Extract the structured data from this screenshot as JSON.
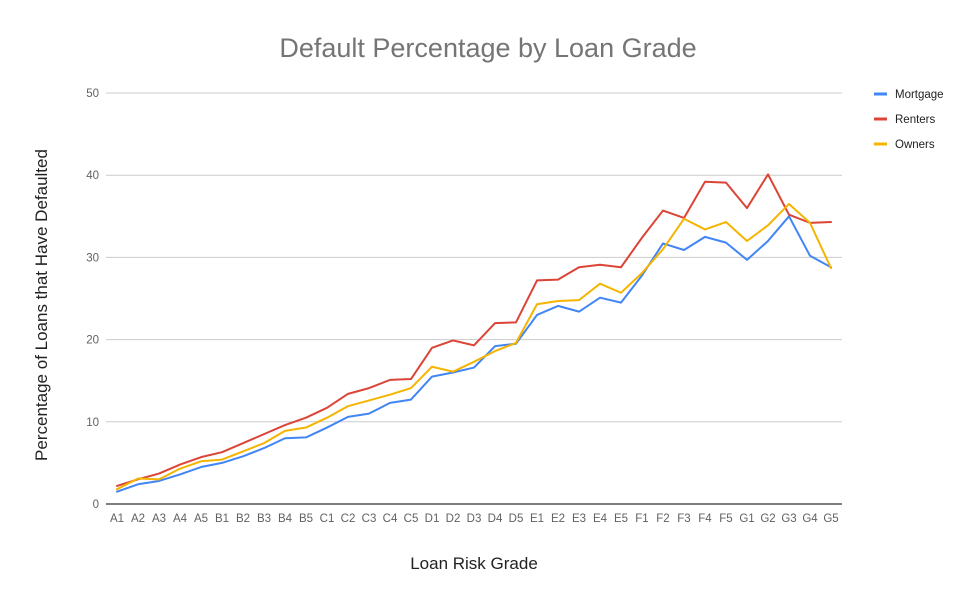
{
  "chart_data": {
    "type": "line",
    "title": "Default Percentage by Loan Grade",
    "xlabel": "Loan Risk Grade",
    "ylabel": "Percentage of Loans that Have Defaulted",
    "ylim": [
      0,
      50
    ],
    "yticks": [
      0,
      10,
      20,
      30,
      40,
      50
    ],
    "grid": true,
    "legend_position": "right",
    "categories": [
      "A1",
      "A2",
      "A3",
      "A4",
      "A5",
      "B1",
      "B2",
      "B3",
      "B4",
      "B5",
      "C1",
      "C2",
      "C3",
      "C4",
      "C5",
      "D1",
      "D2",
      "D3",
      "D4",
      "D5",
      "E1",
      "E2",
      "E3",
      "E4",
      "E5",
      "F1",
      "F2",
      "F3",
      "F4",
      "F5",
      "G1",
      "G2",
      "G3",
      "G4",
      "G5"
    ],
    "series": [
      {
        "name": "Mortgage",
        "color": "#4285f4",
        "values": [
          1.5,
          2.4,
          2.8,
          3.6,
          4.5,
          5.0,
          5.8,
          6.8,
          8.0,
          8.1,
          9.3,
          10.6,
          11.0,
          12.3,
          12.7,
          15.5,
          16.0,
          16.6,
          19.2,
          19.5,
          23.0,
          24.1,
          23.4,
          25.1,
          24.5,
          27.8,
          31.7,
          30.9,
          32.5,
          31.8,
          29.7,
          32.0,
          35.0,
          30.2,
          28.8
        ]
      },
      {
        "name": "Renters",
        "color": "#db4437",
        "values": [
          2.2,
          3.0,
          3.7,
          4.8,
          5.7,
          6.3,
          7.4,
          8.5,
          9.6,
          10.5,
          11.7,
          13.4,
          14.1,
          15.1,
          15.2,
          19.0,
          19.9,
          19.3,
          22.0,
          22.1,
          27.2,
          27.3,
          28.8,
          29.1,
          28.8,
          32.4,
          35.7,
          34.8,
          39.2,
          39.1,
          36.0,
          40.1,
          35.2,
          34.2,
          34.3
        ]
      },
      {
        "name": "Owners",
        "color": "#f4b400",
        "values": [
          1.8,
          3.1,
          3.0,
          4.3,
          5.2,
          5.4,
          6.4,
          7.4,
          8.9,
          9.3,
          10.5,
          11.9,
          12.6,
          13.3,
          14.1,
          16.7,
          16.1,
          17.3,
          18.6,
          19.6,
          24.3,
          24.7,
          24.8,
          26.8,
          25.7,
          28.1,
          31.0,
          34.7,
          33.4,
          34.3,
          32.0,
          33.9,
          36.5,
          34.2,
          28.7
        ]
      }
    ]
  }
}
